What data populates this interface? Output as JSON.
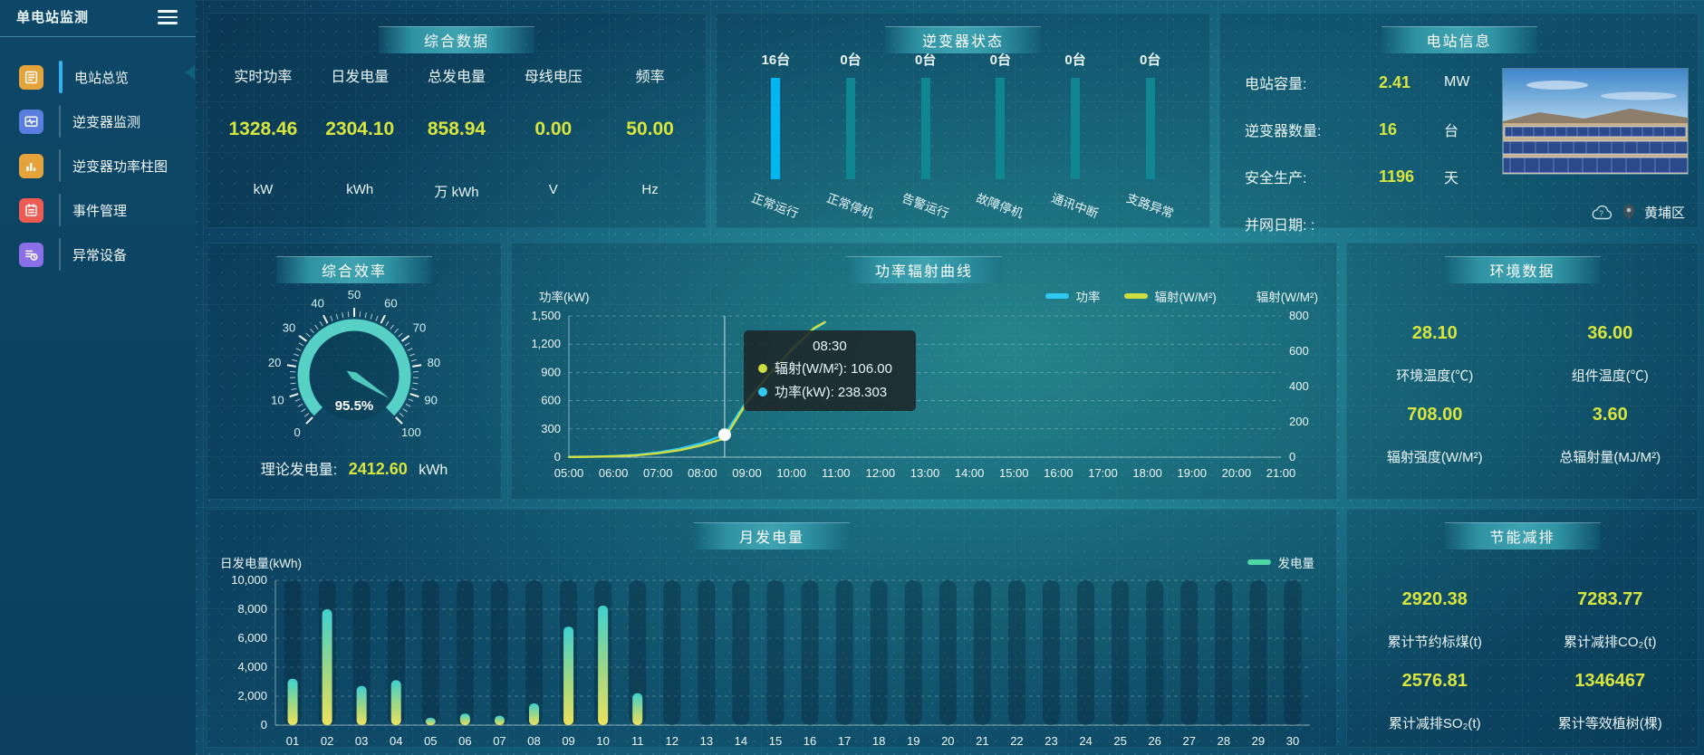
{
  "app": {
    "title": "单电站监测"
  },
  "sidebar": {
    "items": [
      {
        "label": "电站总览",
        "icon": "plant-overview",
        "color": "#e5a43b",
        "active": true
      },
      {
        "label": "逆变器监测",
        "icon": "inverter-monitor",
        "color": "#5a7de0",
        "active": false
      },
      {
        "label": "逆变器功率柱图",
        "icon": "inverter-power-bars",
        "color": "#e5a43b",
        "active": false
      },
      {
        "label": "事件管理",
        "icon": "event-management",
        "color": "#ee5b52",
        "active": false
      },
      {
        "label": "异常设备",
        "icon": "abnormal-devices",
        "color": "#8a6fe8",
        "active": false
      }
    ]
  },
  "panels": {
    "summary": {
      "title": "综合数据",
      "metrics": [
        {
          "label": "实时功率",
          "value": "1328.46",
          "unit": "kW"
        },
        {
          "label": "日发电量",
          "value": "2304.10",
          "unit": "kWh"
        },
        {
          "label": "总发电量",
          "value": "858.94",
          "unit": "万 kWh"
        },
        {
          "label": "母线电压",
          "value": "0.00",
          "unit": "V"
        },
        {
          "label": "频率",
          "value": "50.00",
          "unit": "Hz"
        }
      ]
    },
    "inverter_status": {
      "title": "逆变器状态"
    },
    "station_info": {
      "title": "电站信息",
      "rows": [
        {
          "label": "电站容量:",
          "value": "2.41",
          "unit": "MW"
        },
        {
          "label": "逆变器数量:",
          "value": "16",
          "unit": "台"
        },
        {
          "label": "安全生产:",
          "value": "1196",
          "unit": "天"
        },
        {
          "label": "并网日期: :",
          "value": "",
          "unit": ""
        }
      ],
      "location": "黄埔区"
    },
    "efficiency": {
      "title": "综合效率",
      "theory_label": "理论发电量:",
      "theory_value": "2412.60",
      "theory_unit": "kWh"
    },
    "power_curve": {
      "title": "功率辐射曲线",
      "left_axis_label": "功率(kW)",
      "right_axis_label": "辐射(W/M²)",
      "legend": [
        {
          "label": "功率",
          "color": "#2fc9f2"
        },
        {
          "label": "辐射(W/M²)",
          "color": "#cedd3f"
        }
      ],
      "tooltip": {
        "time": "08:30",
        "rows": [
          {
            "color": "#cedd3f",
            "text": "辐射(W/M²): 106.00"
          },
          {
            "color": "#2fc9f2",
            "text": "功率(kW): 238.303"
          }
        ]
      }
    },
    "environment": {
      "title": "环境数据",
      "stats": [
        {
          "value": "28.10",
          "label": "环境温度(℃)"
        },
        {
          "value": "36.00",
          "label": "组件温度(℃)"
        },
        {
          "value": "708.00",
          "label": "辐射强度(W/M²)"
        },
        {
          "value": "3.60",
          "label": "总辐射量(MJ/M²)"
        }
      ]
    },
    "monthly": {
      "title": "月发电量",
      "ylabel": "日发电量(kWh)",
      "legend": "发电量"
    },
    "saving": {
      "title": "节能减排",
      "stats": [
        {
          "value": "2920.38",
          "label": "累计节约标煤(t)"
        },
        {
          "value": "7283.77",
          "label": "累计减排CO₂(t)"
        },
        {
          "value": "2576.81",
          "label": "累计减排SO₂(t)"
        },
        {
          "value": "1346467",
          "label": "累计等效植树(棵)"
        }
      ]
    }
  },
  "chart_data": [
    {
      "id": "power_radiation_curve",
      "type": "line",
      "title": "功率辐射曲线",
      "x_ticks": [
        "05:00",
        "06:00",
        "07:00",
        "08:00",
        "09:00",
        "10:00",
        "11:00",
        "12:00",
        "13:00",
        "14:00",
        "15:00",
        "16:00",
        "17:00",
        "18:00",
        "19:00",
        "20:00",
        "21:00"
      ],
      "x_range": [
        5,
        21
      ],
      "left_axis": {
        "label": "功率(kW)",
        "min": 0,
        "max": 1500,
        "ticks": [
          "0",
          "300",
          "600",
          "900",
          "1,200",
          "1,500"
        ]
      },
      "right_axis": {
        "label": "辐射(W/M²)",
        "min": 0,
        "max": 800,
        "ticks": [
          "0",
          "200",
          "400",
          "600",
          "800"
        ]
      },
      "series": [
        {
          "name": "功率",
          "color": "#2fc9f2",
          "axis": "left",
          "x": [
            5,
            5.5,
            6,
            6.5,
            7,
            7.5,
            8,
            8.5,
            9,
            9.5,
            10,
            10.5,
            10.75
          ],
          "values": [
            3,
            6,
            12,
            25,
            50,
            90,
            150,
            238.303,
            600,
            880,
            1130,
            1360,
            1430
          ]
        },
        {
          "name": "辐射(W/M²)",
          "color": "#cedd3f",
          "axis": "right",
          "x": [
            5,
            5.5,
            6,
            6.5,
            7,
            7.5,
            8,
            8.5,
            9,
            9.5,
            10,
            10.5,
            10.75
          ],
          "values": [
            1,
            2,
            5,
            10,
            22,
            40,
            68,
            106,
            310,
            470,
            610,
            730,
            765
          ]
        }
      ],
      "hover": {
        "x": 8.5,
        "time": "08:30",
        "power": 238.303,
        "radiation": 106.0
      },
      "legend_position": "top-right",
      "grid": "horizontal-dashed"
    },
    {
      "id": "monthly_generation",
      "type": "bar",
      "title": "月发电量",
      "ylabel": "日发电量(kWh)",
      "categories": [
        "01",
        "02",
        "03",
        "04",
        "05",
        "06",
        "07",
        "08",
        "09",
        "10",
        "11",
        "12",
        "13",
        "14",
        "15",
        "16",
        "17",
        "18",
        "19",
        "20",
        "21",
        "22",
        "23",
        "24",
        "25",
        "26",
        "27",
        "28",
        "29",
        "30"
      ],
      "values": [
        3200,
        8000,
        2700,
        3100,
        500,
        800,
        650,
        1500,
        6800,
        8250,
        2200,
        0,
        0,
        0,
        0,
        0,
        0,
        0,
        0,
        0,
        0,
        0,
        0,
        0,
        0,
        0,
        0,
        0,
        0,
        0
      ],
      "ylim": [
        0,
        10000
      ],
      "y_ticks": [
        "0",
        "2,000",
        "4,000",
        "6,000",
        "8,000",
        "10,000"
      ],
      "legend": "发电量",
      "legend_color": "#4fd6a5",
      "bar_gradient": [
        "#3fd0cf",
        "#a6d87f",
        "#ece25f"
      ],
      "grid": "horizontal-dashed"
    },
    {
      "id": "efficiency_gauge",
      "type": "gauge",
      "value": 95.5,
      "display": "95.5%",
      "min": 0,
      "max": 100,
      "tick_labels": [
        "0",
        "10",
        "20",
        "30",
        "40",
        "50",
        "60",
        "70",
        "80",
        "90",
        "100"
      ],
      "ring_color": "#57d0c6"
    },
    {
      "id": "inverter_status",
      "type": "bar",
      "categories": [
        "正常运行",
        "正常停机",
        "告警运行",
        "故障停机",
        "通讯中断",
        "支路异常"
      ],
      "values": [
        16,
        0,
        0,
        0,
        0,
        0
      ],
      "unit": "台",
      "active_color": "#00b7f3",
      "idle_color": "#0f8691"
    }
  ]
}
